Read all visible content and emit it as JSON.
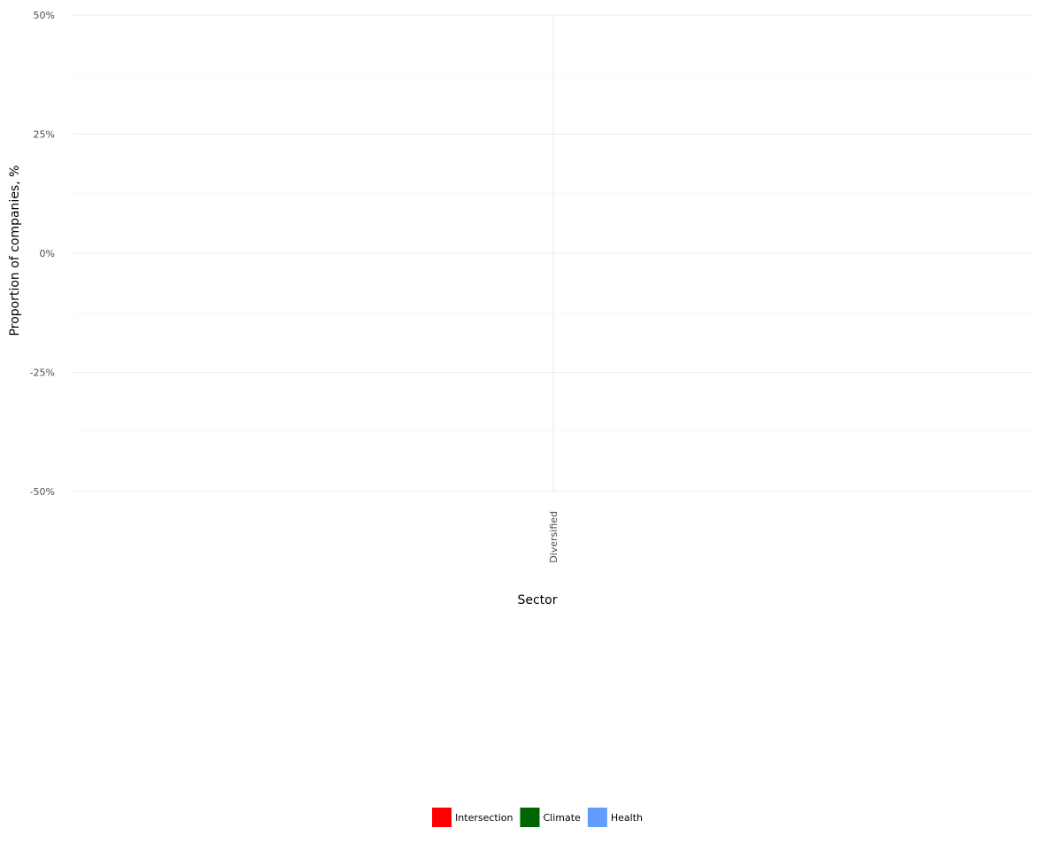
{
  "chart_data": {
    "type": "bar",
    "categories": [
      "Diversified"
    ],
    "series": [
      {
        "name": "Intersection",
        "values": [
          0
        ]
      },
      {
        "name": "Climate",
        "values": [
          0
        ]
      },
      {
        "name": "Health",
        "values": [
          0
        ]
      }
    ],
    "title": "",
    "xlabel": "Sector",
    "ylabel": "Proportion of companies, %",
    "ylim": [
      -50,
      50
    ],
    "yticks": [
      {
        "value": 50,
        "label": "50%"
      },
      {
        "value": 25,
        "label": "25%"
      },
      {
        "value": 0,
        "label": "0%"
      },
      {
        "value": -25,
        "label": "-25%"
      },
      {
        "value": -50,
        "label": "-50%"
      }
    ],
    "grid": true,
    "legend_position": "bottom",
    "colors": {
      "Intersection": "#ff0000",
      "Climate": "#006400",
      "Health": "#619cff"
    }
  }
}
